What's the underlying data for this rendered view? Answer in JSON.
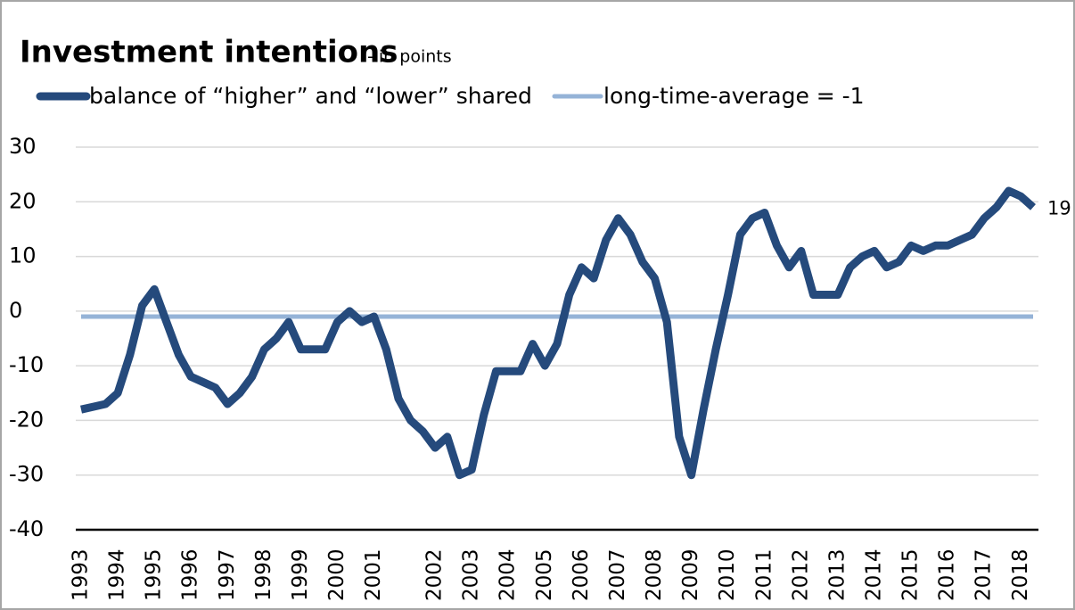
{
  "chart_data": {
    "type": "line",
    "title": "Investment intentions",
    "subtitle": "- in points",
    "categories": [
      "1993",
      null,
      null,
      "1994",
      null,
      null,
      "1995",
      null,
      null,
      "1996",
      null,
      null,
      "1997",
      null,
      null,
      "1998",
      null,
      null,
      "1999",
      null,
      null,
      "2000",
      null,
      null,
      "2001",
      null,
      null,
      null,
      null,
      "2002",
      null,
      null,
      "2003",
      null,
      null,
      "2004",
      null,
      null,
      "2005",
      null,
      null,
      "2006",
      null,
      null,
      "2007",
      null,
      null,
      "2008",
      null,
      null,
      "2009",
      null,
      null,
      "2010",
      null,
      null,
      "2011",
      null,
      null,
      "2012",
      null,
      null,
      "2013",
      null,
      null,
      "2014",
      null,
      null,
      "2015",
      null,
      null,
      "2016",
      null,
      null,
      "2017",
      null,
      null,
      "2018",
      null
    ],
    "series": [
      {
        "name": "balance of “higher” and “lower” shared",
        "color": "#254a7c",
        "values": [
          -18,
          -17.5,
          -17,
          -15,
          -8,
          1,
          4,
          -2,
          -8,
          -12,
          -13,
          -14,
          -17,
          -15,
          -12,
          -7,
          -5,
          -2,
          -7,
          -7,
          -7,
          -2,
          0,
          -2,
          -1,
          -7,
          -16,
          -20,
          -22,
          -25,
          -23,
          -30,
          -29,
          -19,
          -11,
          -11,
          -11,
          -6,
          -10,
          -6,
          3,
          8,
          6,
          13,
          17,
          14,
          9,
          6,
          -2,
          -23,
          -30,
          -18,
          -7,
          3,
          14,
          17,
          18,
          12,
          8,
          11,
          3,
          3,
          3,
          8,
          10,
          11,
          8,
          9,
          12,
          11,
          12,
          12,
          13,
          14,
          17,
          19,
          22,
          21,
          19
        ]
      },
      {
        "name": "long-time-average = -1",
        "color": "#95b3d7",
        "values": [
          -1,
          -1,
          -1,
          -1,
          -1,
          -1,
          -1,
          -1,
          -1,
          -1,
          -1,
          -1,
          -1,
          -1,
          -1,
          -1,
          -1,
          -1,
          -1,
          -1,
          -1,
          -1,
          -1,
          -1,
          -1,
          -1,
          -1,
          -1,
          -1,
          -1,
          -1,
          -1,
          -1,
          -1,
          -1,
          -1,
          -1,
          -1,
          -1,
          -1,
          -1,
          -1,
          -1,
          -1,
          -1,
          -1,
          -1,
          -1,
          -1,
          -1,
          -1,
          -1,
          -1,
          -1,
          -1,
          -1,
          -1,
          -1,
          -1,
          -1,
          -1,
          -1,
          -1,
          -1,
          -1,
          -1,
          -1,
          -1,
          -1,
          -1,
          -1,
          -1,
          -1,
          -1,
          -1,
          -1,
          -1,
          -1,
          -1
        ]
      }
    ],
    "ylim": [
      -40,
      30
    ],
    "yticks": [
      -40,
      -30,
      -20,
      -10,
      0,
      10,
      20,
      30
    ],
    "grid": true
  }
}
